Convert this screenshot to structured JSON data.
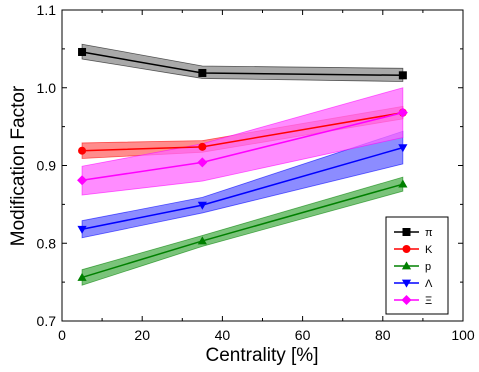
{
  "chart_data": {
    "type": "line",
    "xlabel": "Centrality [%]",
    "ylabel": "Modification Factor",
    "xlim": [
      0,
      100
    ],
    "ylim": [
      0.7,
      1.1
    ],
    "xticks": [
      0,
      20,
      40,
      60,
      80,
      100
    ],
    "yticks": [
      0.7,
      0.8,
      0.9,
      1.0,
      1.1
    ],
    "xtick_labels": [
      "0",
      "20",
      "40",
      "60",
      "80",
      "100"
    ],
    "ytick_labels": [
      "0.7",
      "0.8",
      "0.9",
      "1.0",
      "1.1"
    ],
    "x": [
      5,
      35,
      85
    ],
    "grid": false,
    "legend_position": "bottom-right",
    "series": [
      {
        "name": "π",
        "marker": "square",
        "color": "#000000",
        "band_color": "#8c8c8c",
        "values": [
          1.046,
          1.019,
          1.016
        ],
        "lower": [
          1.037,
          1.012,
          1.008
        ],
        "upper": [
          1.056,
          1.028,
          1.025
        ]
      },
      {
        "name": "K",
        "marker": "circle",
        "color": "#ff0000",
        "band_color": "#ff6666",
        "values": [
          0.919,
          0.924,
          0.968
        ],
        "lower": [
          0.909,
          0.917,
          0.96
        ],
        "upper": [
          0.929,
          0.932,
          0.976
        ]
      },
      {
        "name": "p",
        "marker": "triangle-up",
        "color": "#008000",
        "band_color": "#4daf4d",
        "values": [
          0.756,
          0.803,
          0.876
        ],
        "lower": [
          0.746,
          0.796,
          0.867
        ],
        "upper": [
          0.766,
          0.81,
          0.885
        ]
      },
      {
        "name": "Λ",
        "marker": "triangle-down",
        "color": "#0000ff",
        "band_color": "#6666ff",
        "values": [
          0.818,
          0.849,
          0.923
        ],
        "lower": [
          0.807,
          0.839,
          0.902
        ],
        "upper": [
          0.829,
          0.859,
          0.944
        ]
      },
      {
        "name": "Ξ",
        "marker": "diamond",
        "color": "#ff00ff",
        "band_color": "#ff66ff",
        "values": [
          0.881,
          0.904,
          0.968
        ],
        "lower": [
          0.862,
          0.88,
          0.936
        ],
        "upper": [
          0.899,
          0.928,
          1.0
        ]
      }
    ]
  }
}
